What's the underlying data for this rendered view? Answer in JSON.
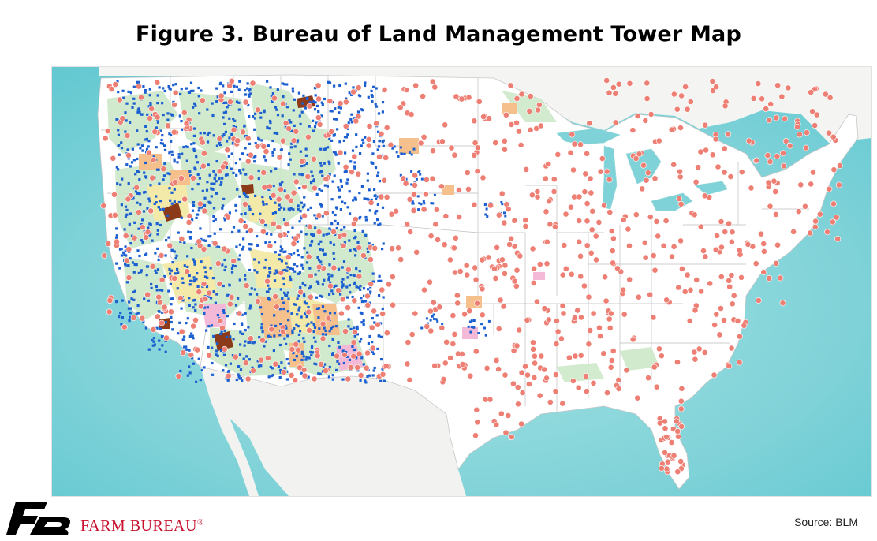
{
  "figure": {
    "title": "Figure 3. Bureau of Land Management Tower Map"
  },
  "map": {
    "region": "contiguous-united-states",
    "layers": [
      {
        "name": "tower-markers",
        "color": "#ee7f74"
      },
      {
        "name": "blm-sites",
        "color": "#1b5fd0"
      },
      {
        "name": "blm-land",
        "color": "#cde8c8"
      },
      {
        "name": "land-parcels-yellow",
        "color": "#f3e9a8"
      },
      {
        "name": "land-parcels-orange",
        "color": "#f6c08c"
      },
      {
        "name": "land-parcels-pink",
        "color": "#f3b9d6"
      },
      {
        "name": "land-parcels-brown",
        "color": "#8b3a1a"
      }
    ],
    "ocean_color": "#7fd2d8",
    "land_color": "#ffffff"
  },
  "footer": {
    "logo_text": "FARM BUREAU",
    "logo_mark": "®",
    "source": "Source: BLM"
  }
}
